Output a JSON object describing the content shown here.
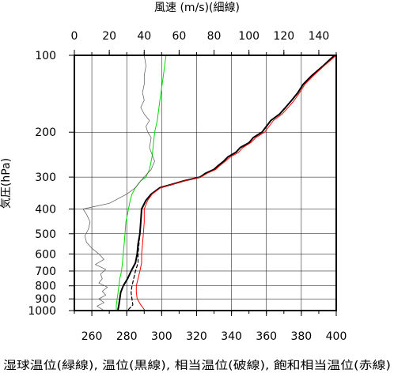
{
  "chart_data": {
    "type": "line",
    "title": "",
    "top_axis": {
      "label": "風速 (m/s)(細線)",
      "range": [
        0,
        150
      ],
      "ticks": [
        0,
        20,
        40,
        60,
        80,
        100,
        120,
        140
      ]
    },
    "bottom_axis": {
      "label": "湿球温位(緑線), 温位(黒線), 相当温位(破線), 飽和相当温位(赤線)",
      "range": [
        250,
        400
      ],
      "ticks": [
        260,
        280,
        300,
        320,
        340,
        360,
        380,
        400
      ]
    },
    "left_axis": {
      "label": "気圧(hPa)",
      "scale": "log",
      "reversed": true,
      "range": [
        100,
        1000
      ],
      "ticks": [
        100,
        200,
        300,
        400,
        500,
        600,
        700,
        800,
        900,
        1000
      ]
    },
    "grid": true,
    "series": [
      {
        "name": "湿球温位",
        "axis": "bottom",
        "color": "#00dd00",
        "width": 1,
        "dash": "",
        "pressure": [
          1000,
          950,
          900,
          850,
          800,
          750,
          700,
          650,
          600,
          550,
          500,
          450,
          400,
          370,
          350,
          330,
          310,
          300,
          280,
          250,
          200,
          180,
          150,
          120,
          100
        ],
        "values": [
          274,
          274,
          274.5,
          275,
          275.5,
          276,
          277,
          277.5,
          278,
          278.5,
          279,
          279.5,
          281,
          282,
          283,
          285,
          288,
          291,
          293,
          294.5,
          296,
          297.5,
          299,
          301,
          302.5
        ]
      },
      {
        "name": "温位",
        "axis": "bottom",
        "color": "#000000",
        "width": 2,
        "dash": "",
        "pressure": [
          990,
          950,
          900,
          850,
          800,
          750,
          700,
          650,
          600,
          550,
          500,
          450,
          400,
          370,
          350,
          330,
          320,
          310,
          300,
          290,
          280,
          270,
          260,
          250,
          240,
          230,
          220,
          210,
          200,
          190,
          180,
          170,
          160,
          150,
          140,
          130,
          120,
          110,
          100
        ],
        "values": [
          275,
          275.5,
          276,
          276.5,
          278,
          280.5,
          282.5,
          285,
          286,
          286.5,
          287.5,
          288,
          288.5,
          291,
          294,
          299,
          306,
          313,
          322,
          325,
          330,
          332.5,
          335.5,
          338,
          342.5,
          345,
          350,
          352.5,
          357.5,
          360,
          362.5,
          367.5,
          371,
          374.5,
          378,
          381,
          386,
          392.5,
          399
        ]
      },
      {
        "name": "相当温位",
        "axis": "bottom",
        "color": "#000000",
        "width": 1.2,
        "dash": "4 3",
        "pressure": [
          990,
          950,
          900,
          850,
          800,
          750,
          700,
          650,
          600,
          550,
          500
        ],
        "values": [
          281,
          283.5,
          283,
          282.5,
          283,
          284,
          285,
          286.5,
          286.5,
          287,
          287.5
        ]
      },
      {
        "name": "飽和相当温位",
        "axis": "bottom",
        "color": "#ff0000",
        "width": 1,
        "dash": "",
        "pressure": [
          990,
          950,
          900,
          850,
          800,
          750,
          700,
          650,
          600,
          550,
          500,
          450,
          400,
          370,
          350,
          330,
          320,
          310,
          300,
          290,
          280,
          270,
          260,
          250,
          240,
          230,
          220,
          210,
          200,
          190,
          180,
          170,
          160,
          150,
          140,
          130,
          120,
          110,
          100
        ],
        "values": [
          290,
          288,
          286,
          285.5,
          285.5,
          286.5,
          287.5,
          288.5,
          288.5,
          289,
          289.5,
          290,
          290,
          292,
          294.5,
          299.5,
          306.5,
          313.5,
          322.5,
          326,
          331,
          333.5,
          336.5,
          339.5,
          344,
          346.5,
          351,
          354,
          359,
          361.5,
          364,
          369,
          372.5,
          376,
          379,
          382,
          387,
          393,
          400
        ]
      },
      {
        "name": "風速",
        "axis": "top",
        "color": "#555555",
        "width": 0.7,
        "dash": "",
        "pressure": [
          1000,
          960,
          930,
          900,
          870,
          840,
          810,
          780,
          750,
          720,
          690,
          660,
          630,
          600,
          570,
          540,
          510,
          480,
          450,
          420,
          400,
          380,
          350,
          330,
          310,
          300,
          280,
          260,
          250,
          230,
          210,
          200,
          190,
          180,
          170,
          160,
          150,
          140,
          130,
          120,
          110,
          100
        ],
        "values": [
          17,
          13,
          17,
          14,
          18,
          16,
          19,
          14,
          16,
          15,
          18,
          12,
          17,
          14,
          10,
          7,
          6,
          8,
          9,
          7,
          5,
          20,
          30,
          35,
          38,
          40,
          44,
          46,
          45,
          43,
          44,
          42,
          41,
          43,
          40,
          38,
          40,
          39,
          40,
          40,
          41,
          40
        ]
      }
    ]
  }
}
